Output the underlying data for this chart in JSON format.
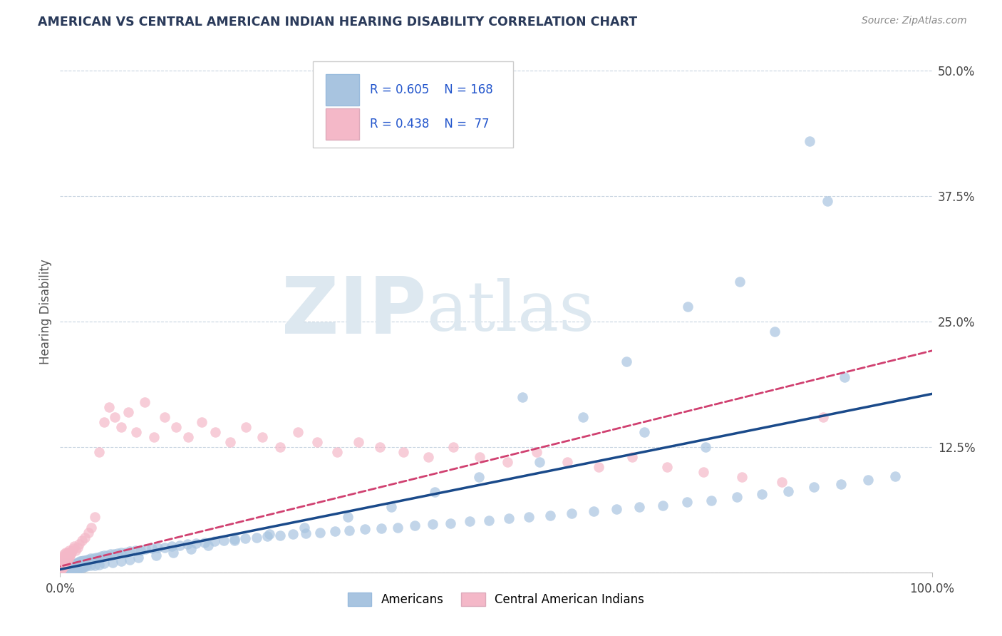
{
  "title": "AMERICAN VS CENTRAL AMERICAN INDIAN HEARING DISABILITY CORRELATION CHART",
  "source": "Source: ZipAtlas.com",
  "ylabel": "Hearing Disability",
  "xlim": [
    0,
    1
  ],
  "ylim": [
    0,
    0.52
  ],
  "R_americans": 0.605,
  "N_americans": 168,
  "R_central": 0.438,
  "N_central": 77,
  "color_americans": "#a8c4e0",
  "color_central": "#f4b8c8",
  "line_color_americans": "#1a4a8a",
  "line_color_central": "#d04070",
  "watermark": "ZIPAtlas",
  "watermark_color": "#dde8f0",
  "background_color": "#ffffff",
  "grid_color": "#c8d4e0",
  "title_color": "#2a3a5a",
  "legend_text_color": "#2255cc",
  "source_color": "#888888",
  "am_x": [
    0.001,
    0.001,
    0.001,
    0.001,
    0.002,
    0.002,
    0.002,
    0.002,
    0.002,
    0.003,
    0.003,
    0.003,
    0.003,
    0.003,
    0.004,
    0.004,
    0.004,
    0.004,
    0.005,
    0.005,
    0.005,
    0.005,
    0.006,
    0.006,
    0.006,
    0.007,
    0.007,
    0.007,
    0.008,
    0.008,
    0.008,
    0.009,
    0.009,
    0.01,
    0.01,
    0.011,
    0.011,
    0.012,
    0.012,
    0.013,
    0.013,
    0.014,
    0.015,
    0.016,
    0.017,
    0.018,
    0.019,
    0.02,
    0.021,
    0.022,
    0.023,
    0.024,
    0.025,
    0.027,
    0.029,
    0.031,
    0.033,
    0.035,
    0.038,
    0.041,
    0.044,
    0.047,
    0.05,
    0.054,
    0.058,
    0.062,
    0.066,
    0.07,
    0.075,
    0.08,
    0.086,
    0.092,
    0.098,
    0.105,
    0.112,
    0.12,
    0.128,
    0.137,
    0.146,
    0.156,
    0.166,
    0.177,
    0.188,
    0.2,
    0.212,
    0.225,
    0.238,
    0.252,
    0.267,
    0.282,
    0.298,
    0.315,
    0.332,
    0.35,
    0.368,
    0.387,
    0.407,
    0.427,
    0.448,
    0.47,
    0.492,
    0.515,
    0.538,
    0.562,
    0.587,
    0.612,
    0.638,
    0.664,
    0.691,
    0.719,
    0.747,
    0.776,
    0.805,
    0.835,
    0.865,
    0.896,
    0.927,
    0.958,
    0.65,
    0.72,
    0.78,
    0.82,
    0.86,
    0.88,
    0.9,
    0.53,
    0.6,
    0.67,
    0.74,
    0.55,
    0.48,
    0.43,
    0.38,
    0.33,
    0.28,
    0.24,
    0.2,
    0.17,
    0.15,
    0.13,
    0.11,
    0.09,
    0.08,
    0.07,
    0.06,
    0.05,
    0.045,
    0.04,
    0.035,
    0.03,
    0.028,
    0.026,
    0.024,
    0.022,
    0.02,
    0.018,
    0.016,
    0.014,
    0.012,
    0.01,
    0.009,
    0.008,
    0.007,
    0.006,
    0.005,
    0.004,
    0.003,
    0.002
  ],
  "am_y": [
    0.002,
    0.004,
    0.003,
    0.005,
    0.002,
    0.004,
    0.006,
    0.003,
    0.005,
    0.003,
    0.005,
    0.007,
    0.004,
    0.006,
    0.003,
    0.005,
    0.007,
    0.004,
    0.003,
    0.005,
    0.007,
    0.009,
    0.004,
    0.006,
    0.008,
    0.004,
    0.006,
    0.008,
    0.004,
    0.006,
    0.009,
    0.005,
    0.007,
    0.005,
    0.008,
    0.005,
    0.008,
    0.006,
    0.009,
    0.006,
    0.009,
    0.007,
    0.007,
    0.008,
    0.008,
    0.009,
    0.009,
    0.01,
    0.01,
    0.01,
    0.011,
    0.011,
    0.011,
    0.012,
    0.012,
    0.013,
    0.013,
    0.014,
    0.014,
    0.015,
    0.015,
    0.016,
    0.017,
    0.017,
    0.018,
    0.018,
    0.019,
    0.02,
    0.02,
    0.021,
    0.022,
    0.022,
    0.023,
    0.024,
    0.025,
    0.025,
    0.026,
    0.027,
    0.028,
    0.029,
    0.03,
    0.031,
    0.032,
    0.033,
    0.034,
    0.035,
    0.036,
    0.037,
    0.038,
    0.039,
    0.04,
    0.041,
    0.042,
    0.043,
    0.044,
    0.045,
    0.047,
    0.048,
    0.049,
    0.051,
    0.052,
    0.054,
    0.055,
    0.057,
    0.059,
    0.061,
    0.063,
    0.065,
    0.067,
    0.07,
    0.072,
    0.075,
    0.078,
    0.081,
    0.085,
    0.088,
    0.092,
    0.096,
    0.21,
    0.265,
    0.29,
    0.24,
    0.43,
    0.37,
    0.195,
    0.175,
    0.155,
    0.14,
    0.125,
    0.11,
    0.095,
    0.08,
    0.065,
    0.055,
    0.045,
    0.038,
    0.032,
    0.027,
    0.023,
    0.02,
    0.017,
    0.015,
    0.013,
    0.011,
    0.01,
    0.009,
    0.008,
    0.007,
    0.007,
    0.006,
    0.006,
    0.005,
    0.005,
    0.005,
    0.004,
    0.004,
    0.004,
    0.004,
    0.003,
    0.003,
    0.003,
    0.003,
    0.003,
    0.002,
    0.002,
    0.002,
    0.002,
    0.002
  ],
  "ca_x": [
    0.001,
    0.001,
    0.001,
    0.002,
    0.002,
    0.002,
    0.003,
    0.003,
    0.003,
    0.004,
    0.004,
    0.004,
    0.005,
    0.005,
    0.005,
    0.006,
    0.006,
    0.006,
    0.007,
    0.007,
    0.008,
    0.008,
    0.009,
    0.009,
    0.01,
    0.01,
    0.011,
    0.012,
    0.013,
    0.014,
    0.015,
    0.016,
    0.018,
    0.02,
    0.022,
    0.025,
    0.028,
    0.032,
    0.036,
    0.04,
    0.045,
    0.05,
    0.056,
    0.063,
    0.07,
    0.078,
    0.087,
    0.097,
    0.108,
    0.12,
    0.133,
    0.147,
    0.162,
    0.178,
    0.195,
    0.213,
    0.232,
    0.252,
    0.273,
    0.295,
    0.318,
    0.342,
    0.367,
    0.394,
    0.422,
    0.451,
    0.481,
    0.513,
    0.547,
    0.582,
    0.618,
    0.656,
    0.696,
    0.738,
    0.782,
    0.828,
    0.875
  ],
  "ca_y": [
    0.003,
    0.006,
    0.01,
    0.004,
    0.008,
    0.012,
    0.005,
    0.009,
    0.014,
    0.006,
    0.01,
    0.016,
    0.007,
    0.011,
    0.018,
    0.008,
    0.013,
    0.02,
    0.01,
    0.015,
    0.012,
    0.018,
    0.013,
    0.02,
    0.015,
    0.022,
    0.017,
    0.018,
    0.02,
    0.022,
    0.024,
    0.026,
    0.022,
    0.025,
    0.028,
    0.032,
    0.035,
    0.04,
    0.045,
    0.055,
    0.12,
    0.15,
    0.165,
    0.155,
    0.145,
    0.16,
    0.14,
    0.17,
    0.135,
    0.155,
    0.145,
    0.135,
    0.15,
    0.14,
    0.13,
    0.145,
    0.135,
    0.125,
    0.14,
    0.13,
    0.12,
    0.13,
    0.125,
    0.12,
    0.115,
    0.125,
    0.115,
    0.11,
    0.12,
    0.11,
    0.105,
    0.115,
    0.105,
    0.1,
    0.095,
    0.09,
    0.155
  ]
}
